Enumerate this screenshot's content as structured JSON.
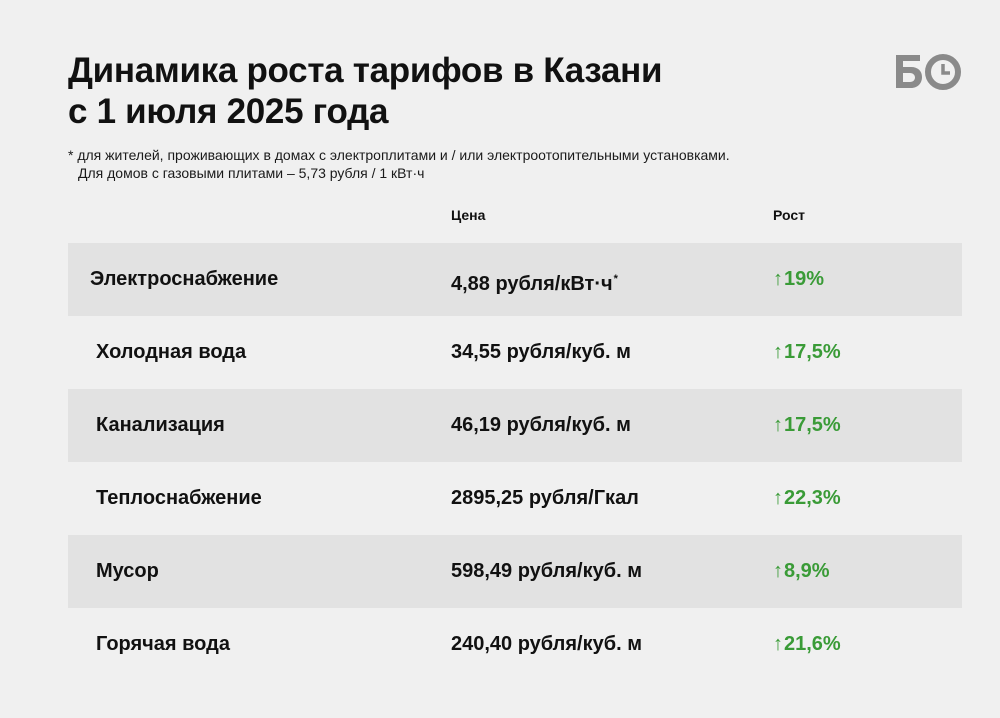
{
  "header": {
    "title_line1": "Динамика роста тарифов в Казани",
    "title_line2": "с 1 июля 2025 года",
    "logo_text": "БО"
  },
  "note": {
    "line1": "* для жителей, проживающих в домах с электроплитами и / или электроотопительными установками.",
    "line2": "Для домов с газовыми плитами – 5,73 рубля / 1 кВт·ч"
  },
  "columns": {
    "price": "Цена",
    "growth": "Рост"
  },
  "colors": {
    "background": "#f0f0f0",
    "row_shade": "#e2e2e2",
    "growth_green": "#3a9b37",
    "text": "#111111",
    "logo_gray": "#8a8a8a"
  },
  "rows": [
    {
      "name": "Электроснабжение",
      "price": "4,88 рубля/кВт·ч",
      "price_mark": "*",
      "arrow": "↑",
      "growth": "19%"
    },
    {
      "name": "Холодная вода",
      "price": "34,55 рубля/куб. м",
      "price_mark": "",
      "arrow": "↑",
      "growth": "17,5%"
    },
    {
      "name": "Канализация",
      "price": "46,19 рубля/куб. м",
      "price_mark": "",
      "arrow": "↑",
      "growth": "17,5%"
    },
    {
      "name": "Теплоснабжение",
      "price": "2895,25 рубля/Гкал",
      "price_mark": "",
      "arrow": "↑",
      "growth": "22,3%"
    },
    {
      "name": "Мусор",
      "price": "598,49 рубля/куб. м",
      "price_mark": "",
      "arrow": "↑",
      "growth": "8,9%"
    },
    {
      "name": "Горячая вода",
      "price": "240,40 рубля/куб. м",
      "price_mark": "",
      "arrow": "↑",
      "growth": "21,6%"
    }
  ]
}
